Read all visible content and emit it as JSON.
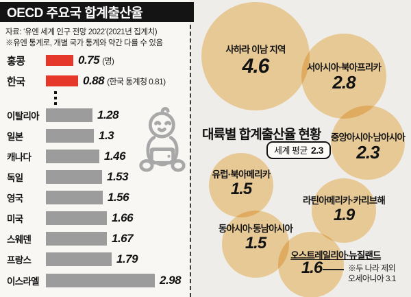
{
  "left_panel": {
    "title": "OECD 주요국 합계출산율",
    "source_line1": "자료: ‘유엔 세계 인구 전망 2022’(2021년 집계치)",
    "source_line2": "※유엔 통계로, 개별 국가 통계와 약간 다를 수 있음",
    "rows": [
      {
        "label": "홍콩",
        "value": 0.75,
        "value_text": "0.75",
        "suffix": "(명)",
        "highlight": true
      },
      {
        "label": "한국",
        "value": 0.88,
        "value_text": "0.88",
        "suffix": "(한국 통계청 0.81)",
        "highlight": true
      },
      {
        "label": "이탈리아",
        "value": 1.28,
        "value_text": "1.28",
        "suffix": "",
        "highlight": false
      },
      {
        "label": "일본",
        "value": 1.3,
        "value_text": "1.3",
        "suffix": "",
        "highlight": false
      },
      {
        "label": "캐나다",
        "value": 1.46,
        "value_text": "1.46",
        "suffix": "",
        "highlight": false
      },
      {
        "label": "독일",
        "value": 1.53,
        "value_text": "1.53",
        "suffix": "",
        "highlight": false
      },
      {
        "label": "영국",
        "value": 1.56,
        "value_text": "1.56",
        "suffix": "",
        "highlight": false
      },
      {
        "label": "미국",
        "value": 1.66,
        "value_text": "1.66",
        "suffix": "",
        "highlight": false
      },
      {
        "label": "스웨덴",
        "value": 1.67,
        "value_text": "1.67",
        "suffix": "",
        "highlight": false
      },
      {
        "label": "프랑스",
        "value": 1.79,
        "value_text": "1.79",
        "suffix": "",
        "highlight": false
      },
      {
        "label": "이스라엘",
        "value": 2.98,
        "value_text": "2.98",
        "suffix": "",
        "highlight": false
      }
    ]
  },
  "right_panel": {
    "title": "대륙별 합계출산율 현황",
    "world_avg_label": "세계 평균",
    "world_avg_value": "2.3",
    "bubbles": [
      {
        "label": "사하라 이남 지역",
        "value": "4.6"
      },
      {
        "label": "서아시아·북아프리카",
        "value": "2.8"
      },
      {
        "label": "중앙아시아·남아시아",
        "value": "2.3"
      },
      {
        "label": "유럽·북아메리카",
        "value": "1.5"
      },
      {
        "label": "라틴아메리카·카리브해",
        "value": "1.9"
      },
      {
        "label": "동아시아·동남아시아",
        "value": "1.5"
      },
      {
        "label": "오스트레일리아·뉴질랜드",
        "value": "1.6"
      }
    ],
    "footnote_line1": "※두 나라 제외",
    "footnote_line2": "오세아니아 3.1"
  },
  "colors": {
    "highlight_bar": "#e5372a",
    "bar": "#9c9c9c",
    "bubble": "#f7d9a4",
    "header_bg": "#141414",
    "baby_icon": "#a8a8a8"
  },
  "chart_data": [
    {
      "type": "bar",
      "orientation": "horizontal",
      "title": "OECD 주요국 합계출산율",
      "categories": [
        "홍콩",
        "한국",
        "이탈리아",
        "일본",
        "캐나다",
        "독일",
        "영국",
        "미국",
        "스웨덴",
        "프랑스",
        "이스라엘"
      ],
      "values": [
        0.75,
        0.88,
        1.28,
        1.3,
        1.46,
        1.53,
        1.56,
        1.66,
        1.67,
        1.79,
        2.98
      ],
      "unit": "명",
      "highlighted_categories": [
        "홍콩",
        "한국"
      ],
      "annotations": [
        "한국 통계청 0.81"
      ],
      "source": "자료: ‘유엔 세계 인구 전망 2022’(2021년 집계치) ※유엔 통계로, 개별 국가 통계와 약간 다를 수 있음"
    },
    {
      "type": "bubble",
      "title": "대륙별 합계출산율 현황",
      "world_average": 2.3,
      "categories": [
        "사하라 이남 지역",
        "서아시아·북아프리카",
        "중앙아시아·남아시아",
        "유럽·북아메리카",
        "라틴아메리카·카리브해",
        "동아시아·동남아시아",
        "오스트레일리아·뉴질랜드"
      ],
      "values": [
        4.6,
        2.8,
        2.3,
        1.5,
        1.9,
        1.5,
        1.6
      ],
      "footnote": "※두 나라 제외 오세아니아 3.1"
    }
  ]
}
